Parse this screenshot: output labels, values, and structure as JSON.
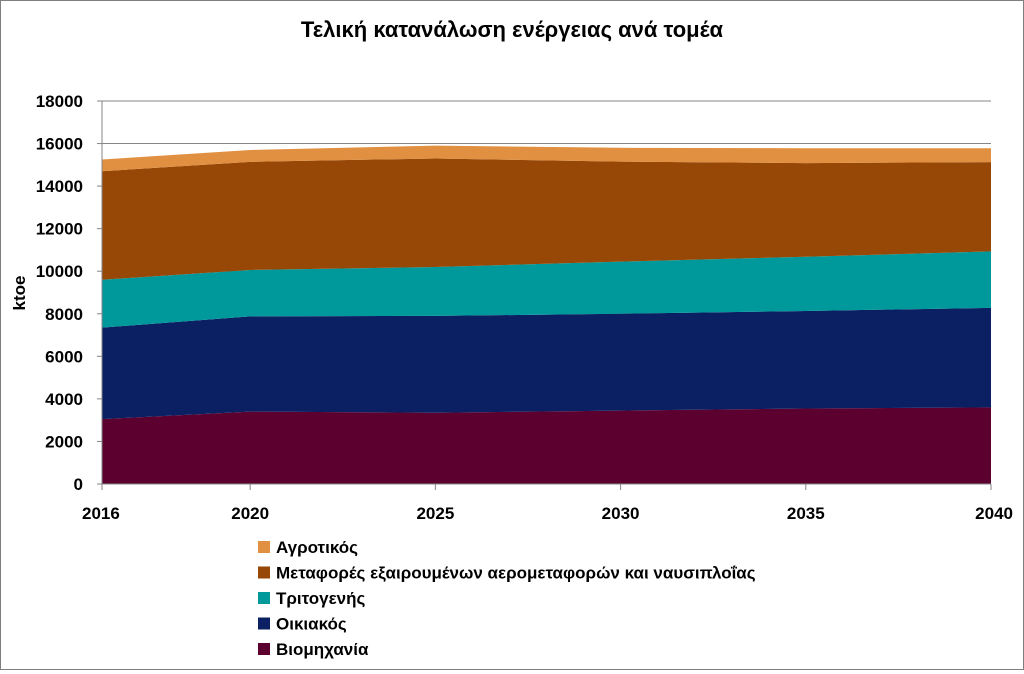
{
  "chart_data": {
    "type": "area",
    "stacked": true,
    "title": "Τελική κατανάλωση ενέργειας ανά τομέα",
    "xlabel": "",
    "ylabel": "ktoe",
    "x": [
      2016,
      2020,
      2025,
      2030,
      2035,
      2040
    ],
    "x_tick_labels": [
      "2016",
      "2020",
      "2025",
      "2030",
      "2035",
      "2040"
    ],
    "ylim": [
      0,
      18000
    ],
    "y_ticks": [
      0,
      2000,
      4000,
      6000,
      8000,
      10000,
      12000,
      14000,
      16000,
      18000
    ],
    "y_tick_labels": [
      "0",
      "2000",
      "4000",
      "6000",
      "8000",
      "10000",
      "12000",
      "14000",
      "16000",
      "18000"
    ],
    "grid": true,
    "legend_position": "bottom",
    "series": [
      {
        "name": "Βιομηχανία",
        "color": "#5c0030",
        "values": [
          3050,
          3400,
          3350,
          3450,
          3550,
          3600
        ]
      },
      {
        "name": "Οικιακός",
        "color": "#0b1f63",
        "values": [
          4300,
          4480,
          4550,
          4550,
          4580,
          4680
        ]
      },
      {
        "name": "Τριτογενής",
        "color": "#00999b",
        "values": [
          2250,
          2180,
          2300,
          2450,
          2550,
          2650
        ]
      },
      {
        "name": "Μεταφορές εξαιρουμένων αερομεταφορών και ναυσιπλοΐας",
        "color": "#974706",
        "values": [
          5100,
          5080,
          5100,
          4700,
          4400,
          4200
        ]
      },
      {
        "name": "Αγροτικός",
        "color": "#e09040",
        "values": [
          550,
          560,
          600,
          650,
          700,
          650
        ]
      }
    ],
    "legend_order": [
      4,
      3,
      2,
      1,
      0
    ]
  }
}
